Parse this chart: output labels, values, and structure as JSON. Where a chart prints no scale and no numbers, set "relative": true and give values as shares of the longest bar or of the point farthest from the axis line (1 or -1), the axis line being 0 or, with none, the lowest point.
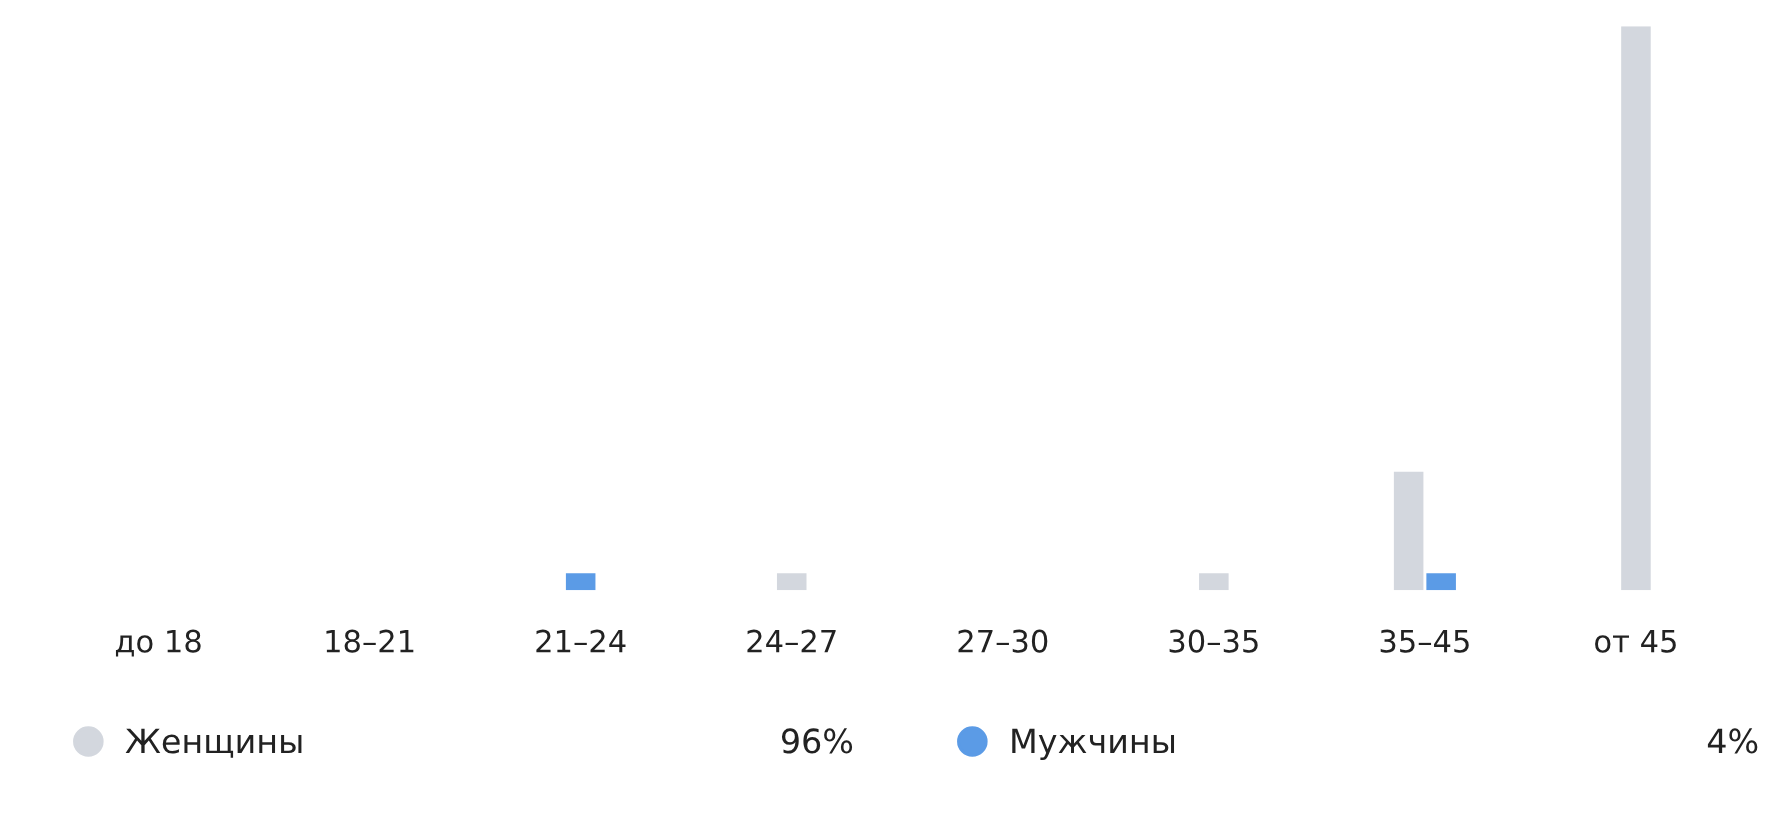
{
  "chart_data": {
    "type": "bar",
    "relative": true,
    "legend": "bottom",
    "grid": false,
    "categories": [
      "до 18",
      "18–21",
      "21–24",
      "24–27",
      "27–30",
      "30–35",
      "35–45",
      "от 45"
    ],
    "series": [
      {
        "name": "Женщины",
        "color": "#d3d7de",
        "values": [
          0,
          0,
          0,
          0.03,
          0,
          0.03,
          0.21,
          1
        ]
      },
      {
        "name": "Мужчины",
        "color": "#5b9be6",
        "values": [
          0,
          0,
          0.03,
          0,
          0,
          0,
          0.03,
          0
        ]
      }
    ],
    "annotations": [
      "96%",
      "4%"
    ]
  }
}
